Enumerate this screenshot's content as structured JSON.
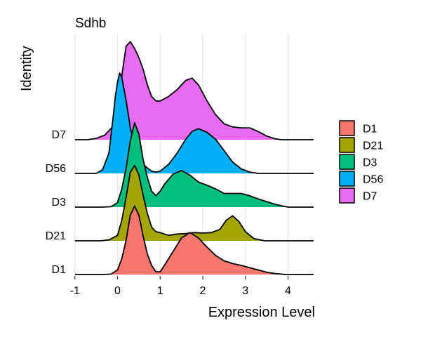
{
  "chart_data": {
    "type": "ridgeline",
    "title": "Sdhb",
    "xlabel": "Expression Level",
    "ylabel": "Identity",
    "xlim": [
      -1,
      4.6
    ],
    "x_ticks": [
      -1,
      0,
      1,
      2,
      3,
      4
    ],
    "grid": "vertical",
    "categories": [
      "D1",
      "D21",
      "D3",
      "D56",
      "D7"
    ],
    "legend_position": "right",
    "series": [
      {
        "name": "D1",
        "color": "#F8766D",
        "density": [
          [
            -0.35,
            0.0
          ],
          [
            -0.15,
            0.01
          ],
          [
            0.0,
            0.1
          ],
          [
            0.1,
            0.35
          ],
          [
            0.2,
            0.75
          ],
          [
            0.3,
            1.3
          ],
          [
            0.4,
            1.5
          ],
          [
            0.5,
            1.3
          ],
          [
            0.6,
            0.85
          ],
          [
            0.7,
            0.45
          ],
          [
            0.8,
            0.2
          ],
          [
            0.9,
            0.06
          ],
          [
            1.0,
            0.06
          ],
          [
            1.1,
            0.2
          ],
          [
            1.3,
            0.5
          ],
          [
            1.5,
            0.8
          ],
          [
            1.7,
            0.92
          ],
          [
            1.9,
            0.8
          ],
          [
            2.1,
            0.6
          ],
          [
            2.3,
            0.42
          ],
          [
            2.5,
            0.3
          ],
          [
            2.7,
            0.24
          ],
          [
            2.9,
            0.2
          ],
          [
            3.1,
            0.15
          ],
          [
            3.3,
            0.1
          ],
          [
            3.5,
            0.05
          ],
          [
            3.7,
            0.02
          ],
          [
            3.95,
            0.0
          ]
        ]
      },
      {
        "name": "D21",
        "color": "#A3A500",
        "density": [
          [
            -0.4,
            0.0
          ],
          [
            -0.2,
            0.02
          ],
          [
            0.0,
            0.12
          ],
          [
            0.1,
            0.45
          ],
          [
            0.2,
            0.95
          ],
          [
            0.3,
            1.5
          ],
          [
            0.4,
            1.65
          ],
          [
            0.5,
            1.45
          ],
          [
            0.6,
            1.0
          ],
          [
            0.7,
            0.6
          ],
          [
            0.8,
            0.3
          ],
          [
            0.9,
            0.2
          ],
          [
            1.0,
            0.18
          ],
          [
            1.2,
            0.12
          ],
          [
            1.4,
            0.15
          ],
          [
            1.6,
            0.16
          ],
          [
            1.8,
            0.18
          ],
          [
            2.0,
            0.17
          ],
          [
            2.2,
            0.18
          ],
          [
            2.4,
            0.25
          ],
          [
            2.55,
            0.45
          ],
          [
            2.7,
            0.55
          ],
          [
            2.85,
            0.42
          ],
          [
            3.0,
            0.2
          ],
          [
            3.2,
            0.05
          ],
          [
            3.45,
            0.0
          ]
        ]
      },
      {
        "name": "D3",
        "color": "#00BF7D",
        "density": [
          [
            -0.35,
            0.0
          ],
          [
            -0.15,
            0.01
          ],
          [
            0.0,
            0.1
          ],
          [
            0.1,
            0.4
          ],
          [
            0.2,
            0.85
          ],
          [
            0.3,
            1.45
          ],
          [
            0.4,
            1.85
          ],
          [
            0.5,
            1.6
          ],
          [
            0.6,
            1.05
          ],
          [
            0.7,
            0.65
          ],
          [
            0.8,
            0.35
          ],
          [
            0.9,
            0.25
          ],
          [
            1.0,
            0.35
          ],
          [
            1.1,
            0.5
          ],
          [
            1.3,
            0.72
          ],
          [
            1.5,
            0.8
          ],
          [
            1.7,
            0.7
          ],
          [
            1.9,
            0.55
          ],
          [
            2.1,
            0.48
          ],
          [
            2.3,
            0.4
          ],
          [
            2.5,
            0.3
          ],
          [
            2.7,
            0.3
          ],
          [
            2.9,
            0.3
          ],
          [
            3.1,
            0.25
          ],
          [
            3.3,
            0.18
          ],
          [
            3.5,
            0.12
          ],
          [
            3.7,
            0.06
          ],
          [
            3.9,
            0.02
          ],
          [
            4.0,
            0.0
          ]
        ]
      },
      {
        "name": "D56",
        "color": "#00B0F6",
        "density": [
          [
            -0.5,
            0.0
          ],
          [
            -0.35,
            0.08
          ],
          [
            -0.2,
            0.45
          ],
          [
            -0.1,
            1.25
          ],
          [
            -0.05,
            1.7
          ],
          [
            0.0,
            2.0
          ],
          [
            0.05,
            2.2
          ],
          [
            0.1,
            2.1
          ],
          [
            0.2,
            1.6
          ],
          [
            0.3,
            1.0
          ],
          [
            0.4,
            0.6
          ],
          [
            0.5,
            0.35
          ],
          [
            0.6,
            0.2
          ],
          [
            0.7,
            0.12
          ],
          [
            0.8,
            0.05
          ],
          [
            0.9,
            0.03
          ],
          [
            1.0,
            0.05
          ],
          [
            1.2,
            0.2
          ],
          [
            1.4,
            0.45
          ],
          [
            1.6,
            0.75
          ],
          [
            1.75,
            0.92
          ],
          [
            1.9,
            0.98
          ],
          [
            2.1,
            0.9
          ],
          [
            2.3,
            0.75
          ],
          [
            2.5,
            0.5
          ],
          [
            2.7,
            0.25
          ],
          [
            2.9,
            0.1
          ],
          [
            3.1,
            0.03
          ],
          [
            3.3,
            0.0
          ]
        ]
      },
      {
        "name": "D7",
        "color": "#E76BF3",
        "density": [
          [
            -0.7,
            0.0
          ],
          [
            -0.5,
            0.03
          ],
          [
            -0.3,
            0.1
          ],
          [
            -0.1,
            0.3
          ],
          [
            0.0,
            0.6
          ],
          [
            0.1,
            1.4
          ],
          [
            0.2,
            2.05
          ],
          [
            0.3,
            2.15
          ],
          [
            0.4,
            2.0
          ],
          [
            0.5,
            1.8
          ],
          [
            0.6,
            1.55
          ],
          [
            0.7,
            1.2
          ],
          [
            0.8,
            0.95
          ],
          [
            0.9,
            0.85
          ],
          [
            1.0,
            0.85
          ],
          [
            1.2,
            0.95
          ],
          [
            1.4,
            1.1
          ],
          [
            1.6,
            1.3
          ],
          [
            1.75,
            1.35
          ],
          [
            1.9,
            1.2
          ],
          [
            2.1,
            0.85
          ],
          [
            2.3,
            0.55
          ],
          [
            2.5,
            0.35
          ],
          [
            2.7,
            0.28
          ],
          [
            2.9,
            0.26
          ],
          [
            3.1,
            0.26
          ],
          [
            3.3,
            0.18
          ],
          [
            3.5,
            0.08
          ],
          [
            3.7,
            0.02
          ],
          [
            3.85,
            0.0
          ]
        ]
      }
    ]
  }
}
